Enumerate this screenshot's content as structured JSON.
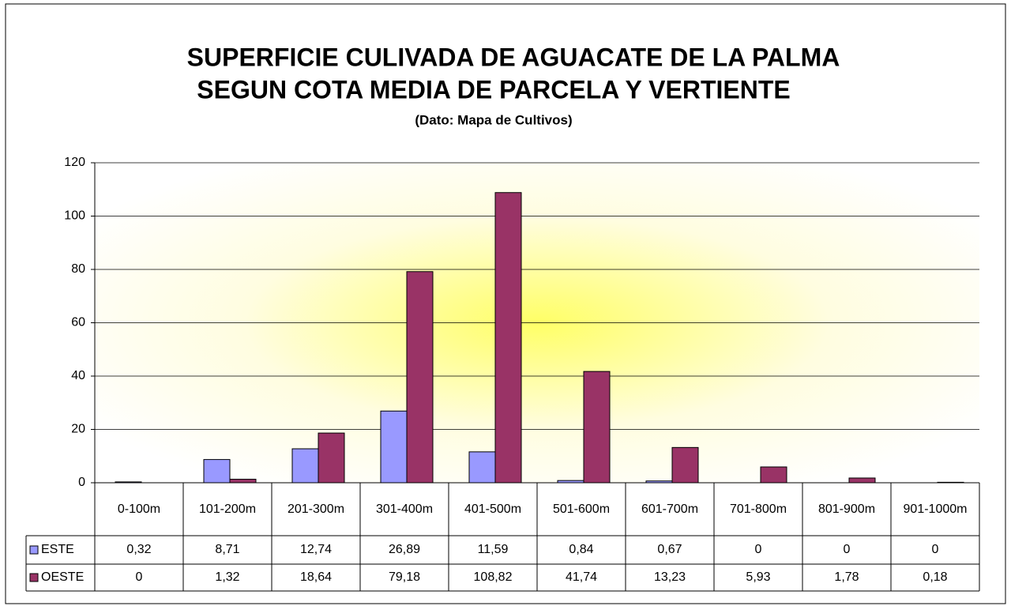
{
  "chart_data": {
    "type": "bar",
    "title": [
      "SUPERFICIE CULIVADA DE AGUACATE DE LA PALMA",
      "SEGUN COTA MEDIA DE PARCELA Y VERTIENTE"
    ],
    "subtitle": "(Dato: Mapa de Cultivos)",
    "categories": [
      "0-100m",
      "101-200m",
      "201-300m",
      "301-400m",
      "401-500m",
      "501-600m",
      "601-700m",
      "701-800m",
      "801-900m",
      "901-1000m"
    ],
    "series": [
      {
        "name": "ESTE",
        "color": "#9999ff",
        "values": [
          0.32,
          8.71,
          12.74,
          26.89,
          11.59,
          0.84,
          0.67,
          0,
          0,
          0
        ],
        "value_labels": [
          "0,32",
          "8,71",
          "12,74",
          "26,89",
          "11,59",
          "0,84",
          "0,67",
          "0",
          "0",
          "0"
        ]
      },
      {
        "name": "OESTE",
        "color": "#993366",
        "values": [
          0,
          1.32,
          18.64,
          79.18,
          108.82,
          41.74,
          13.23,
          5.93,
          1.78,
          0.18
        ],
        "value_labels": [
          "0",
          "1,32",
          "18,64",
          "79,18",
          "108,82",
          "41,74",
          "13,23",
          "5,93",
          "1,78",
          "0,18"
        ]
      }
    ],
    "ylim": [
      0,
      120
    ],
    "yticks": [
      0,
      20,
      40,
      60,
      80,
      100,
      120
    ],
    "grid": true
  }
}
